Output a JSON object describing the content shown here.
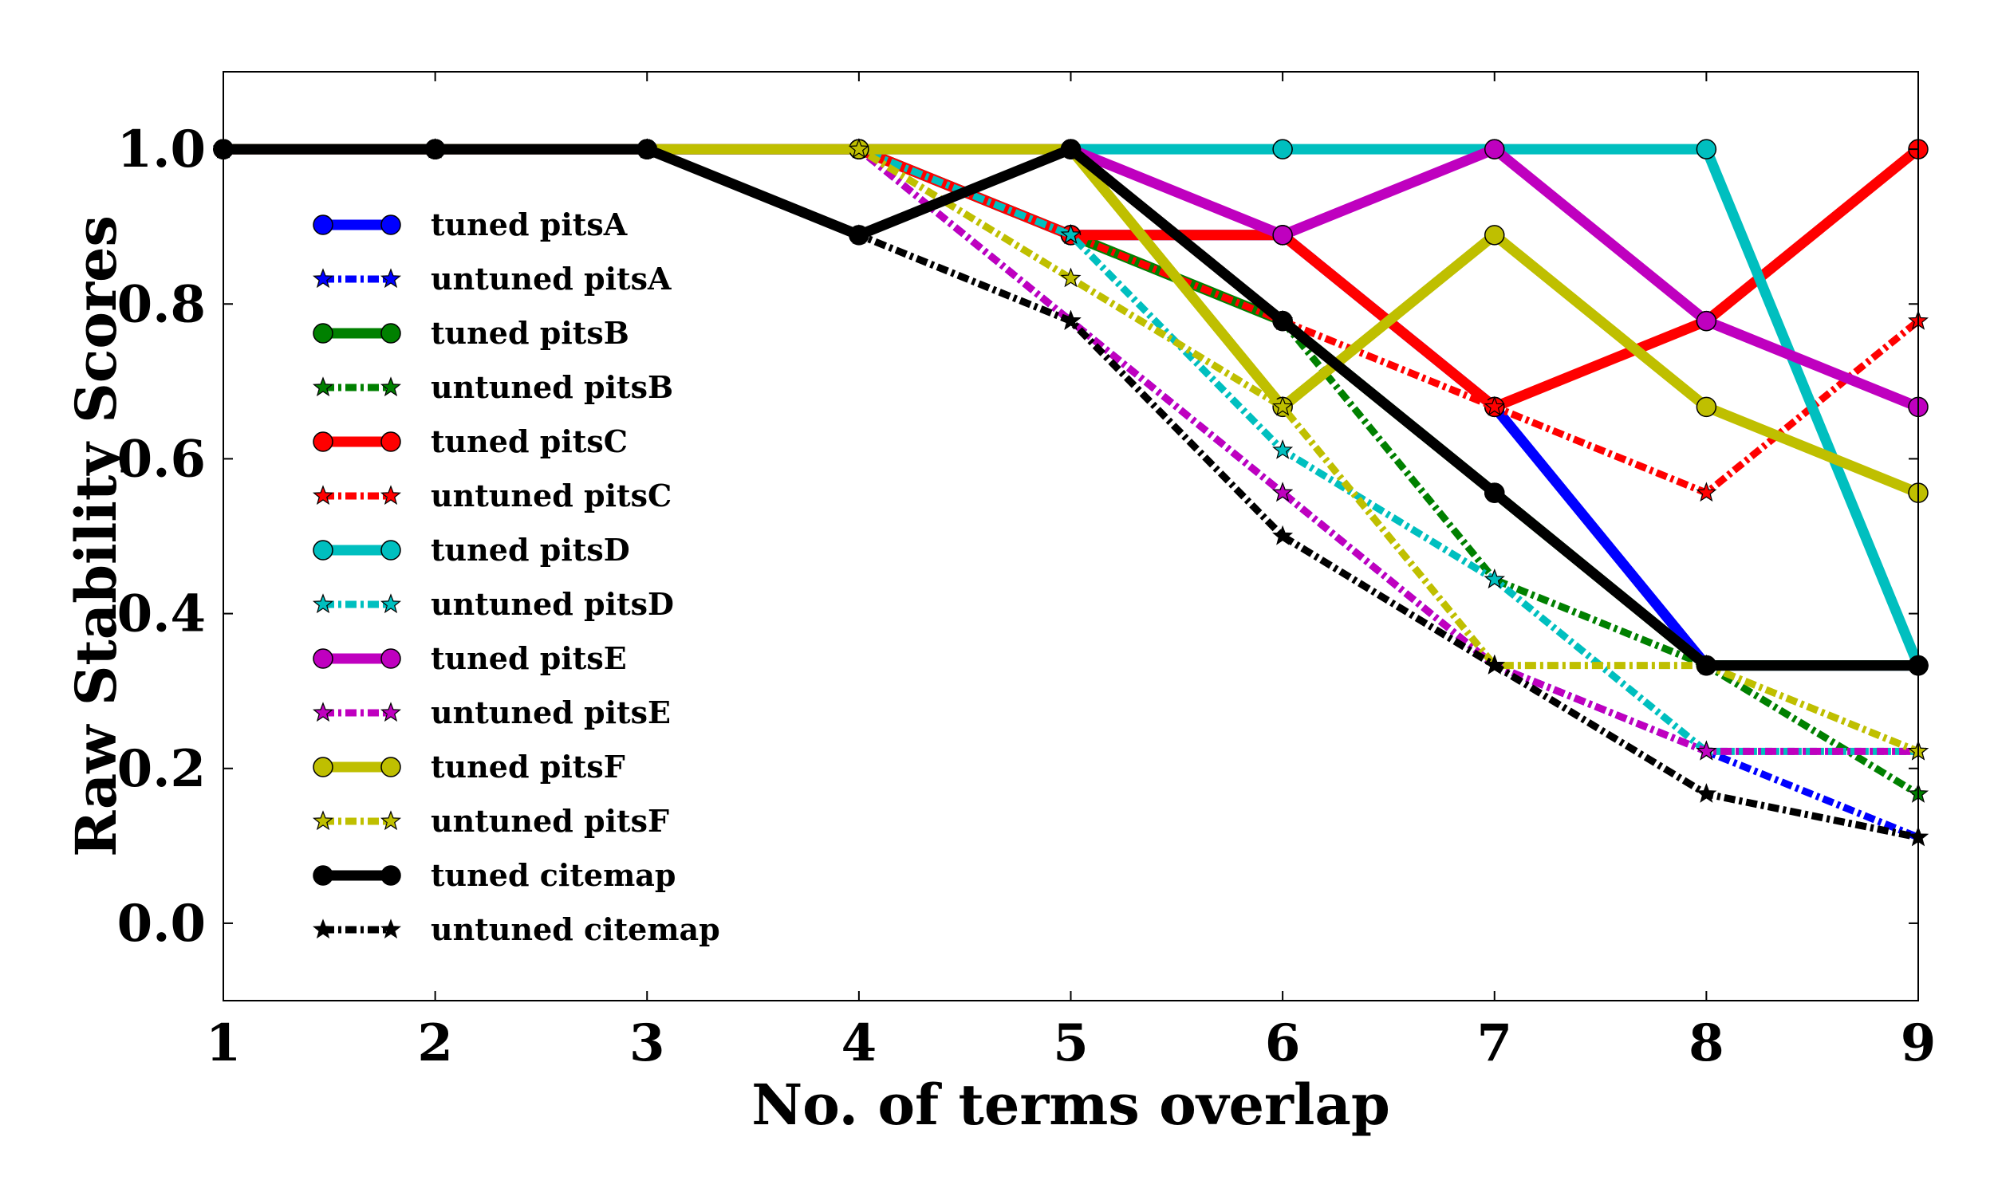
{
  "chart_data": {
    "type": "line",
    "title": "",
    "xlabel": "No. of terms overlap",
    "ylabel": "Raw Stability Scores",
    "x": [
      1,
      2,
      3,
      4,
      5,
      6,
      7,
      8,
      9
    ],
    "xlim": [
      1,
      9
    ],
    "ylim": [
      -0.1,
      1.1
    ],
    "xticks": [
      "1",
      "2",
      "3",
      "4",
      "5",
      "6",
      "7",
      "8",
      "9"
    ],
    "yticks": [
      "0.0",
      "0.2",
      "0.4",
      "0.6",
      "0.8",
      "1.0"
    ],
    "grid": false,
    "legend_position": "left",
    "series": [
      {
        "name": "tuned pitsA",
        "color": "#0000ff",
        "style": "solid",
        "marker": "circle",
        "values": [
          1.0,
          1.0,
          1.0,
          1.0,
          0.889,
          0.889,
          0.667,
          0.333,
          0.333
        ]
      },
      {
        "name": "untuned pitsA",
        "color": "#0000ff",
        "style": "dashdot",
        "marker": "star",
        "values": [
          1.0,
          1.0,
          1.0,
          1.0,
          0.778,
          0.556,
          0.333,
          0.222,
          0.111
        ]
      },
      {
        "name": "tuned pitsB",
        "color": "#008000",
        "style": "solid",
        "marker": "circle",
        "values": [
          1.0,
          1.0,
          1.0,
          1.0,
          0.889,
          0.778,
          0.556,
          0.333,
          0.333
        ]
      },
      {
        "name": "untuned pitsB",
        "color": "#008000",
        "style": "dashdot",
        "marker": "star",
        "values": [
          1.0,
          1.0,
          1.0,
          1.0,
          0.889,
          0.778,
          0.444,
          0.333,
          0.167
        ]
      },
      {
        "name": "tuned pitsC",
        "color": "#ff0000",
        "style": "solid",
        "marker": "circle",
        "values": [
          1.0,
          1.0,
          1.0,
          1.0,
          0.889,
          0.889,
          0.667,
          0.778,
          1.0
        ]
      },
      {
        "name": "untuned pitsC",
        "color": "#ff0000",
        "style": "dashdot",
        "marker": "star",
        "values": [
          1.0,
          1.0,
          1.0,
          1.0,
          0.889,
          0.778,
          0.667,
          0.556,
          0.778
        ]
      },
      {
        "name": "tuned pitsD",
        "color": "#00bfbf",
        "style": "solid",
        "marker": "circle",
        "values": [
          1.0,
          1.0,
          1.0,
          1.0,
          1.0,
          1.0,
          1.0,
          1.0,
          0.333
        ]
      },
      {
        "name": "untuned pitsD",
        "color": "#00bfbf",
        "style": "dashdot",
        "marker": "star",
        "values": [
          1.0,
          1.0,
          1.0,
          1.0,
          0.889,
          0.611,
          0.444,
          0.222,
          0.222
        ]
      },
      {
        "name": "tuned pitsE",
        "color": "#bf00bf",
        "style": "solid",
        "marker": "circle",
        "values": [
          1.0,
          1.0,
          1.0,
          1.0,
          1.0,
          0.889,
          1.0,
          0.778,
          0.667
        ]
      },
      {
        "name": "untuned pitsE",
        "color": "#bf00bf",
        "style": "dashdot",
        "marker": "star",
        "values": [
          1.0,
          1.0,
          1.0,
          1.0,
          0.778,
          0.556,
          0.333,
          0.222,
          0.222
        ]
      },
      {
        "name": "tuned pitsF",
        "color": "#bfbf00",
        "style": "solid",
        "marker": "circle",
        "values": [
          1.0,
          1.0,
          1.0,
          1.0,
          1.0,
          0.667,
          0.889,
          0.667,
          0.556
        ]
      },
      {
        "name": "untuned pitsF",
        "color": "#bfbf00",
        "style": "dashdot",
        "marker": "star",
        "values": [
          1.0,
          1.0,
          1.0,
          1.0,
          0.833,
          0.667,
          0.333,
          0.333,
          0.222
        ]
      },
      {
        "name": "tuned citemap",
        "color": "#000000",
        "style": "solid",
        "marker": "circle",
        "values": [
          1.0,
          1.0,
          1.0,
          0.889,
          1.0,
          0.778,
          0.556,
          0.333,
          0.333
        ]
      },
      {
        "name": "untuned citemap",
        "color": "#000000",
        "style": "dashdot",
        "marker": "star",
        "values": [
          1.0,
          1.0,
          1.0,
          0.889,
          0.778,
          0.5,
          0.333,
          0.167,
          0.111
        ]
      }
    ]
  }
}
